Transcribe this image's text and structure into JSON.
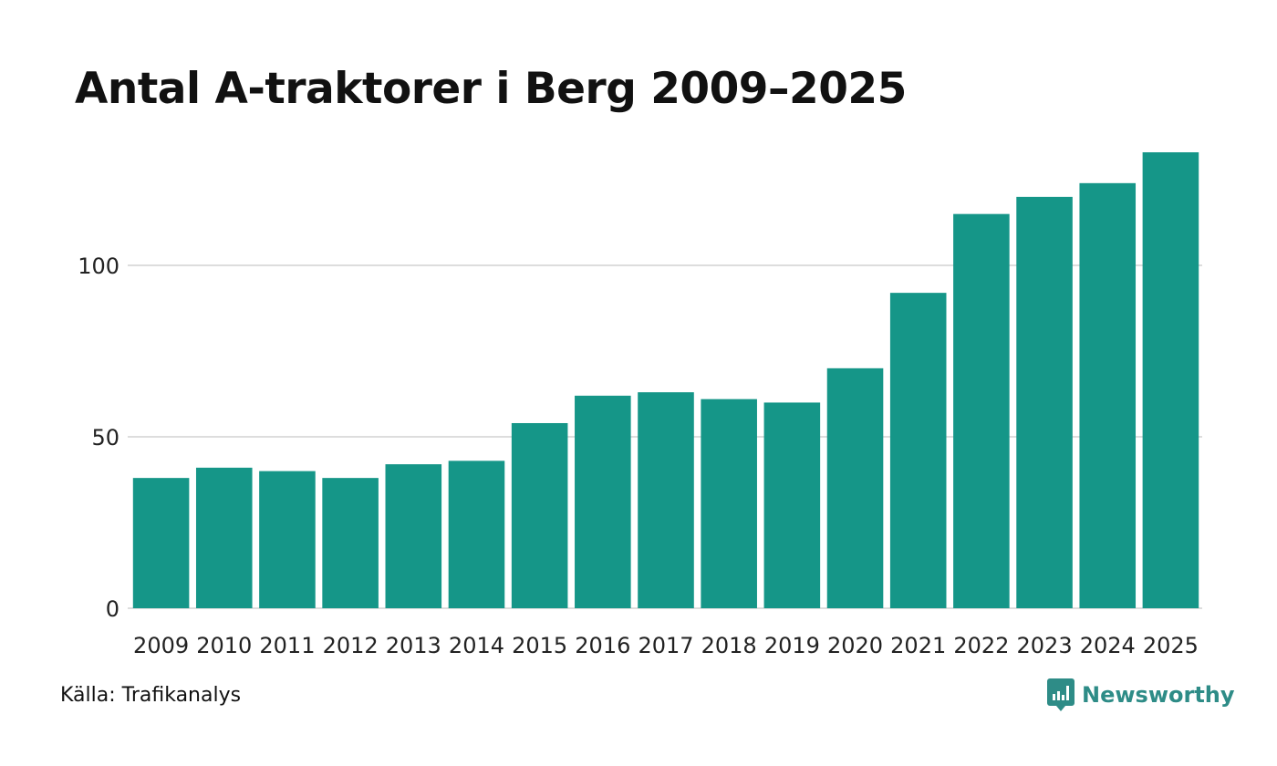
{
  "chart_data": {
    "type": "bar",
    "title": "Antal A-traktorer i Berg 2009–2025",
    "categories": [
      "2009",
      "2010",
      "2011",
      "2012",
      "2013",
      "2014",
      "2015",
      "2016",
      "2017",
      "2018",
      "2019",
      "2020",
      "2021",
      "2022",
      "2023",
      "2024",
      "2025"
    ],
    "values": [
      38,
      41,
      40,
      38,
      42,
      43,
      54,
      62,
      63,
      61,
      60,
      70,
      92,
      115,
      120,
      124,
      133
    ],
    "yticks": [
      "0",
      "50",
      "100"
    ],
    "ylim": [
      0,
      133
    ],
    "xlabel": "",
    "ylabel": "",
    "grid": true,
    "bar_color": "#159688"
  },
  "footer": {
    "source": "Källa: Trafikanalys",
    "brand": "Newsworthy",
    "brand_color": "#2e8c87"
  },
  "icons": {
    "brand_logo": "newsworthy-logo-icon"
  }
}
